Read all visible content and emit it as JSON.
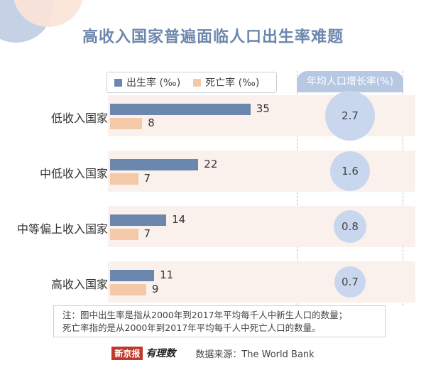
{
  "title": "高收入国家普遍面临人口出生率难题",
  "legend": {
    "birth_label": "出生率 (‰)",
    "death_label": "死亡率 (‰)"
  },
  "growth_header": "年均人口增长率(%)",
  "colors": {
    "birth": "#6c87ad",
    "death": "#f4c9a8",
    "bubble": "#c9d7ee",
    "row_bg": "#fbf1ec",
    "title": "#6c87ad"
  },
  "chart_data": {
    "type": "bar",
    "orientation": "horizontal",
    "title": "高收入国家普遍面临人口出生率难题",
    "categories": [
      "低收入国家",
      "中低收入国家",
      "中等偏上收入国家",
      "高收入国家"
    ],
    "series": [
      {
        "name": "出生率 (‰)",
        "values": [
          35,
          22,
          14,
          11
        ]
      },
      {
        "name": "死亡率 (‰)",
        "values": [
          8,
          7,
          7,
          9
        ]
      }
    ],
    "growth": {
      "name": "年均人口增长率(%)",
      "values": [
        "2.7",
        "1.6",
        "0.8",
        "0.7"
      ]
    },
    "legend_position": "top-left",
    "grid": false
  },
  "note": {
    "line1": "注：图中出生率是指从2000年到2017年平均每千人中新生人口的数量；",
    "line2": "死亡率指的是从2000年到2017年平均每千人中死亡人口的数量。"
  },
  "footer": {
    "logo_box": "新京报",
    "logo_script": "有理数",
    "source": "数据来源：The World Bank"
  }
}
